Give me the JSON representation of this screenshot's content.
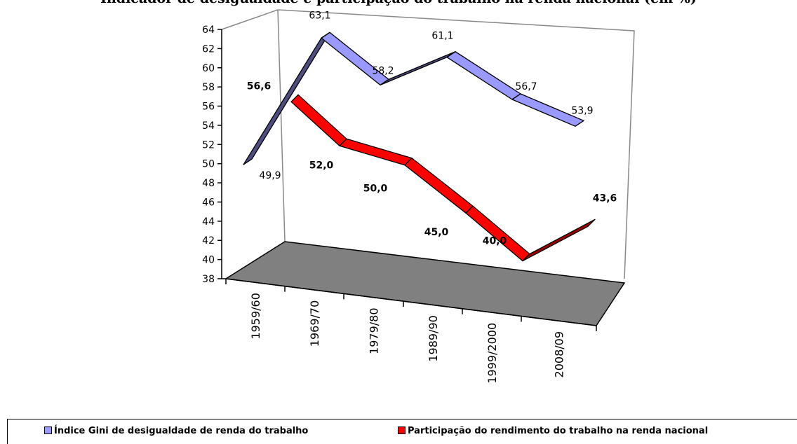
{
  "title": "Indicador de desigualdade e participação do trabalho na renda nacional (em %)",
  "chart_data": {
    "type": "line",
    "title": "Indicador de desigualdade e participação do trabalho na renda nacional (em %)",
    "categories": [
      "1959/60",
      "1969/70",
      "1979/80",
      "1989/90",
      "1999/2000",
      "2008/09"
    ],
    "y_ticks": [
      "64",
      "62",
      "60",
      "58",
      "56",
      "54",
      "52",
      "50",
      "48",
      "46",
      "44",
      "42",
      "40",
      "38"
    ],
    "ylim": [
      38,
      64
    ],
    "grid": false,
    "legend_position": "bottom",
    "series": [
      {
        "name": "Índice Gini de desigualdade de renda do trabalho",
        "values": [
          49.9,
          63.1,
          58.2,
          61.1,
          56.7,
          53.9
        ],
        "labels": [
          "49,9",
          "63,1",
          "58,2",
          "61,1",
          "56,7",
          "53,9"
        ],
        "color": "#9999ff"
      },
      {
        "name": "Participação do rendimento do trabalho na renda nacional",
        "values": [
          56.6,
          52.0,
          50.0,
          45.0,
          40.0,
          43.6
        ],
        "labels": [
          "56,6",
          "52,0",
          "50,0",
          "45,0",
          "40,0",
          "43,6"
        ],
        "color": "#ff0000"
      }
    ]
  },
  "colors": {
    "floor": "#808080",
    "gini_dark": "#4d4d80",
    "share_dark": "#990000"
  }
}
